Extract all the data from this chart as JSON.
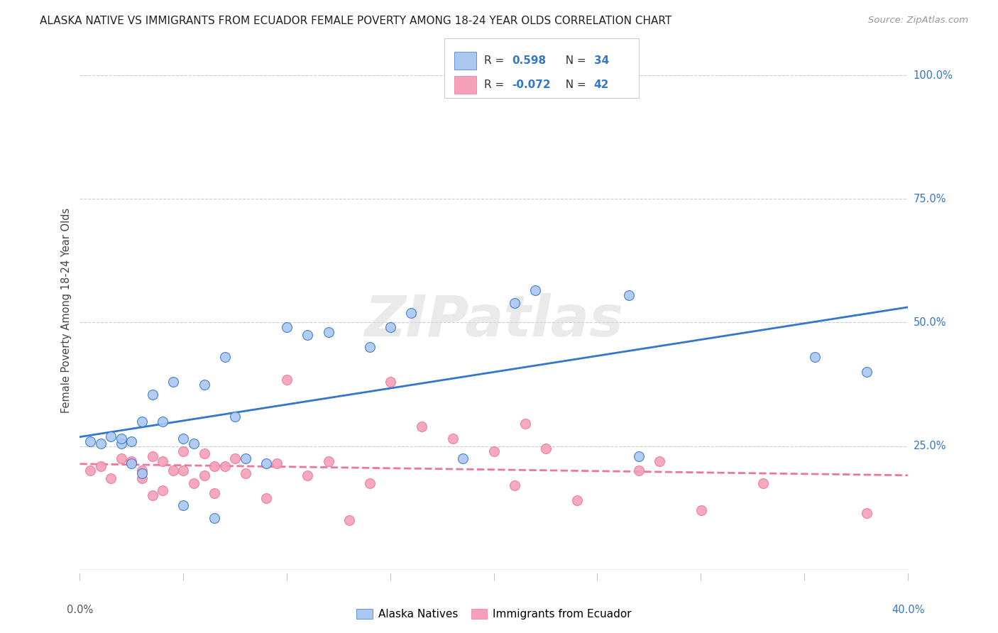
{
  "title": "ALASKA NATIVE VS IMMIGRANTS FROM ECUADOR FEMALE POVERTY AMONG 18-24 YEAR OLDS CORRELATION CHART",
  "source": "Source: ZipAtlas.com",
  "ylabel": "Female Poverty Among 18-24 Year Olds",
  "xlim": [
    0.0,
    0.4
  ],
  "ylim": [
    0.0,
    1.05
  ],
  "r_alaska": 0.598,
  "n_alaska": 34,
  "r_ecuador": -0.072,
  "n_ecuador": 42,
  "color_alaska": "#aac8f0",
  "color_ecuador": "#f4a0b8",
  "line_color_alaska": "#3377cc",
  "line_color_ecuador": "#ee7799",
  "watermark": "ZIPatlas",
  "alaska_scatter_x": [
    0.005,
    0.01,
    0.015,
    0.02,
    0.02,
    0.025,
    0.025,
    0.03,
    0.03,
    0.035,
    0.04,
    0.045,
    0.05,
    0.05,
    0.055,
    0.06,
    0.065,
    0.07,
    0.075,
    0.08,
    0.09,
    0.1,
    0.11,
    0.12,
    0.14,
    0.15,
    0.16,
    0.185,
    0.21,
    0.22,
    0.265,
    0.27,
    0.355,
    0.38
  ],
  "alaska_scatter_y": [
    0.26,
    0.255,
    0.27,
    0.255,
    0.265,
    0.26,
    0.215,
    0.3,
    0.195,
    0.355,
    0.3,
    0.38,
    0.265,
    0.13,
    0.255,
    0.375,
    0.105,
    0.43,
    0.31,
    0.225,
    0.215,
    0.49,
    0.475,
    0.48,
    0.45,
    0.49,
    0.52,
    0.225,
    0.54,
    0.565,
    0.555,
    0.23,
    0.43,
    0.4
  ],
  "ecuador_scatter_x": [
    0.005,
    0.01,
    0.015,
    0.02,
    0.025,
    0.03,
    0.03,
    0.035,
    0.035,
    0.04,
    0.04,
    0.045,
    0.05,
    0.05,
    0.055,
    0.06,
    0.06,
    0.065,
    0.065,
    0.07,
    0.075,
    0.08,
    0.09,
    0.095,
    0.1,
    0.11,
    0.12,
    0.13,
    0.14,
    0.15,
    0.165,
    0.18,
    0.2,
    0.21,
    0.215,
    0.225,
    0.24,
    0.27,
    0.28,
    0.3,
    0.33,
    0.38
  ],
  "ecuador_scatter_y": [
    0.2,
    0.21,
    0.185,
    0.225,
    0.22,
    0.2,
    0.185,
    0.15,
    0.23,
    0.16,
    0.22,
    0.2,
    0.24,
    0.2,
    0.175,
    0.235,
    0.19,
    0.155,
    0.21,
    0.21,
    0.225,
    0.195,
    0.145,
    0.215,
    0.385,
    0.19,
    0.22,
    0.1,
    0.175,
    0.38,
    0.29,
    0.265,
    0.24,
    0.17,
    0.295,
    0.245,
    0.14,
    0.2,
    0.22,
    0.12,
    0.175,
    0.115
  ]
}
